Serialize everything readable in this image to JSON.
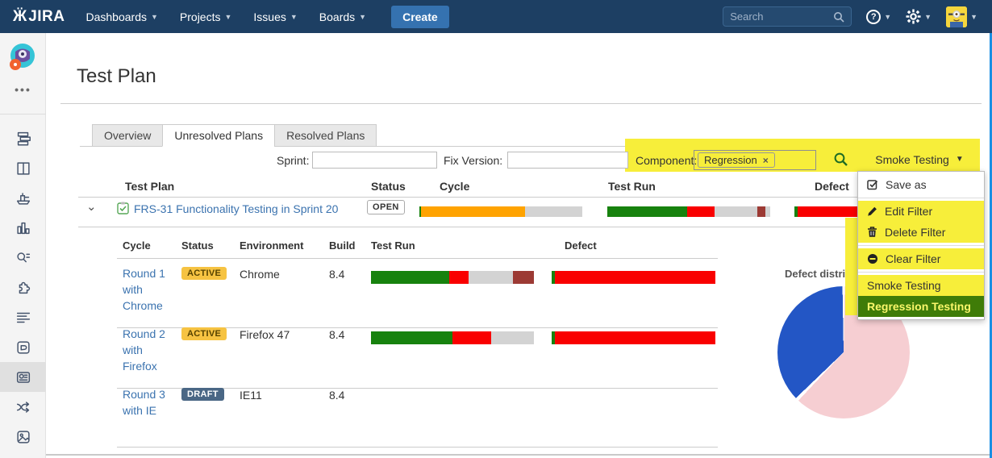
{
  "topnav": {
    "logo_text": "JIRA",
    "menu": [
      "Dashboards",
      "Projects",
      "Issues",
      "Boards"
    ],
    "create_label": "Create",
    "search_placeholder": "Search",
    "icons": [
      "help-icon",
      "gear-icon",
      "user-avatar"
    ]
  },
  "sidebar": {
    "items": [
      "project-avatar",
      "more",
      "backlog",
      "board",
      "releases",
      "reports",
      "search-issues",
      "addons",
      "summary",
      "pages",
      "tests",
      "workflow",
      "media"
    ],
    "selected": "tests"
  },
  "page": {
    "title": "Test Plan"
  },
  "tabs": [
    {
      "label": "Overview",
      "active": false
    },
    {
      "label": "Unresolved Plans",
      "active": true
    },
    {
      "label": "Resolved Plans",
      "active": false
    }
  ],
  "filters": {
    "sprint_label": "Sprint:",
    "sprint_value": "",
    "fix_version_label": "Fix Version:",
    "fix_version_value": "",
    "component_label": "Component:",
    "component_tag": "Regression",
    "tag_remove": "×",
    "filter_dropdown_label": "Smoke Testing"
  },
  "dropdown_menu": {
    "items": [
      {
        "label": "Save as",
        "icon": "checkbox-icon",
        "highlight": "none",
        "divider_before": false
      },
      {
        "label": "Edit Filter",
        "icon": "pencil-icon",
        "highlight": "yellow",
        "divider_before": true
      },
      {
        "label": "Delete Filter",
        "icon": "trash-icon",
        "highlight": "yellow",
        "divider_before": false
      },
      {
        "label": "Clear Filter",
        "icon": "minus-circle-icon",
        "highlight": "yellow",
        "divider_before": true
      },
      {
        "label": "Smoke Testing",
        "icon": "none",
        "highlight": "yellow",
        "divider_before": true
      },
      {
        "label": "Regression Testing",
        "icon": "none",
        "highlight": "green",
        "divider_before": false
      }
    ]
  },
  "main_table": {
    "headers": [
      "Test Plan",
      "Status",
      "Cycle",
      "Test Run",
      "Defect"
    ],
    "row": {
      "link": "FRS-31 Functionality Testing in Sprint 20",
      "status": "OPEN",
      "bars": {
        "cycle": [
          {
            "color": "green",
            "pct": 1
          },
          {
            "color": "orange",
            "pct": 64
          },
          {
            "color": "gray",
            "pct": 35
          }
        ],
        "test_run": [
          {
            "color": "green",
            "pct": 49
          },
          {
            "color": "red",
            "pct": 17
          },
          {
            "color": "gray",
            "pct": 26
          },
          {
            "color": "maroon",
            "pct": 5
          },
          {
            "color": "gray",
            "pct": 3
          }
        ],
        "defect": [
          {
            "color": "green",
            "pct": 2
          },
          {
            "color": "red",
            "pct": 98
          }
        ]
      }
    }
  },
  "sub_table": {
    "headers": [
      "Cycle",
      "Status",
      "Environment",
      "Build",
      "Test Run",
      "Defect"
    ],
    "rows": [
      {
        "cycle": "Round 1 with Chrome",
        "status": "ACTIVE",
        "environment": "Chrome",
        "build": "8.4",
        "bars": {
          "test_run": [
            {
              "color": "green",
              "pct": 48
            },
            {
              "color": "red",
              "pct": 12
            },
            {
              "color": "gray",
              "pct": 27
            },
            {
              "color": "maroon",
              "pct": 13
            }
          ],
          "defect": [
            {
              "color": "green",
              "pct": 2
            },
            {
              "color": "red",
              "pct": 98
            }
          ]
        }
      },
      {
        "cycle": "Round 2 with Firefox",
        "status": "ACTIVE",
        "environment": "Firefox 47",
        "build": "8.4",
        "bars": {
          "test_run": [
            {
              "color": "green",
              "pct": 50
            },
            {
              "color": "red",
              "pct": 24
            },
            {
              "color": "gray",
              "pct": 26
            }
          ],
          "defect": [
            {
              "color": "green",
              "pct": 2
            },
            {
              "color": "red",
              "pct": 98
            }
          ]
        }
      },
      {
        "cycle": "Round 3 with IE",
        "status": "DRAFT",
        "environment": "IE11",
        "build": "8.4",
        "bars": null
      }
    ]
  },
  "chart_data": {
    "type": "pie",
    "title": "Defect distribution",
    "slices": [
      {
        "color": "#2356c5",
        "percent": 38
      },
      {
        "color": "#f6ced2",
        "percent": 62
      }
    ],
    "legend": "none"
  },
  "colors": {
    "green": "#17820e",
    "orange": "#ffa300",
    "red": "#f90000",
    "gray": "#d3d3d3",
    "maroon": "#9c3a34",
    "highlight_yellow": "#f7ee3a",
    "menu_green_bg": "#3f7c08",
    "menu_green_text": "#fbf76a",
    "link_blue": "#3b73af",
    "header_navy": "#1d3f63",
    "create_blue": "#3572b0",
    "right_edge_blue": "#1a8fe3"
  }
}
